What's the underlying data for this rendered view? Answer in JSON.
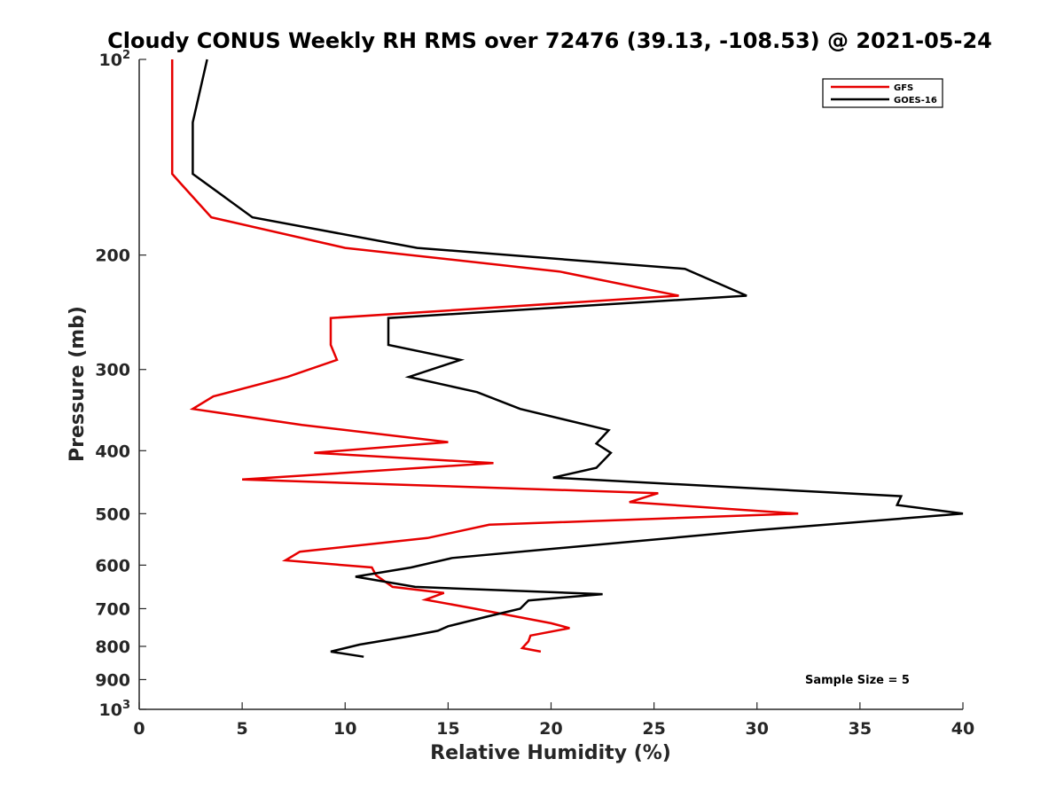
{
  "chart_data": {
    "type": "line",
    "title": "Cloudy CONUS Weekly RH RMS over 72476 (39.13, -108.53) @ 2021-05-24",
    "xlabel": "Relative Humidity (%)",
    "ylabel": "Pressure (mb)",
    "xlim": [
      0,
      40
    ],
    "ylim": [
      100,
      1000
    ],
    "yscale": "log",
    "y_reversed": true,
    "x_ticks": [
      "0",
      "5",
      "10",
      "15",
      "20",
      "25",
      "30",
      "35",
      "40"
    ],
    "y_ticks": [
      {
        "value": 100,
        "base": "10",
        "exp": "2"
      },
      {
        "value": 200,
        "label": "200"
      },
      {
        "value": 300,
        "label": "300"
      },
      {
        "value": 400,
        "label": "400"
      },
      {
        "value": 500,
        "label": "500"
      },
      {
        "value": 600,
        "label": "600"
      },
      {
        "value": 700,
        "label": "700"
      },
      {
        "value": 800,
        "label": "800"
      },
      {
        "value": 900,
        "label": "900"
      },
      {
        "value": 1000,
        "base": "10",
        "exp": "3"
      }
    ],
    "grid": false,
    "legend_position": "top-right",
    "annotation": "Sample Size = 5",
    "series": [
      {
        "name": "GFS",
        "color": "#e60000",
        "points": [
          [
            1.6,
            100
          ],
          [
            1.6,
            125
          ],
          [
            1.6,
            150
          ],
          [
            2.0,
            155
          ],
          [
            3.5,
            175
          ],
          [
            10.0,
            195
          ],
          [
            20.4,
            212
          ],
          [
            26.2,
            231
          ],
          [
            9.3,
            250
          ],
          [
            9.3,
            275
          ],
          [
            9.6,
            290
          ],
          [
            7.2,
            308
          ],
          [
            3.6,
            330
          ],
          [
            2.6,
            345
          ],
          [
            7.9,
            365
          ],
          [
            15.0,
            388
          ],
          [
            8.5,
            403
          ],
          [
            17.2,
            418
          ],
          [
            5.0,
            443
          ],
          [
            25.2,
            465
          ],
          [
            23.8,
            480
          ],
          [
            32.0,
            500
          ],
          [
            17.0,
            520
          ],
          [
            14.0,
            545
          ],
          [
            7.8,
            572
          ],
          [
            7.1,
            590
          ],
          [
            11.3,
            605
          ],
          [
            11.5,
            622
          ],
          [
            12.3,
            648
          ],
          [
            14.8,
            662
          ],
          [
            13.9,
            678
          ],
          [
            16.3,
            700
          ],
          [
            20.0,
            737
          ],
          [
            20.9,
            750
          ],
          [
            19.0,
            770
          ],
          [
            18.9,
            786
          ],
          [
            18.6,
            805
          ],
          [
            19.5,
            815
          ]
        ]
      },
      {
        "name": "GOES-16",
        "color": "#000000",
        "points": [
          [
            3.3,
            100
          ],
          [
            2.6,
            125
          ],
          [
            2.6,
            150
          ],
          [
            5.5,
            175
          ],
          [
            13.5,
            195
          ],
          [
            26.5,
            210
          ],
          [
            29.5,
            231
          ],
          [
            12.1,
            250
          ],
          [
            12.1,
            275
          ],
          [
            15.6,
            290
          ],
          [
            13.1,
            308
          ],
          [
            16.4,
            325
          ],
          [
            18.5,
            345
          ],
          [
            22.8,
            372
          ],
          [
            22.2,
            390
          ],
          [
            22.9,
            403
          ],
          [
            22.2,
            425
          ],
          [
            20.1,
            440
          ],
          [
            37.0,
            470
          ],
          [
            36.8,
            485
          ],
          [
            40.0,
            500
          ],
          [
            30.0,
            530
          ],
          [
            15.2,
            585
          ],
          [
            13.2,
            605
          ],
          [
            10.5,
            625
          ],
          [
            13.4,
            648
          ],
          [
            22.5,
            665
          ],
          [
            18.9,
            680
          ],
          [
            18.5,
            700
          ],
          [
            16.9,
            720
          ],
          [
            15.0,
            745
          ],
          [
            14.5,
            757
          ],
          [
            13.1,
            772
          ],
          [
            10.7,
            795
          ],
          [
            9.3,
            815
          ],
          [
            10.9,
            830
          ]
        ]
      }
    ]
  }
}
